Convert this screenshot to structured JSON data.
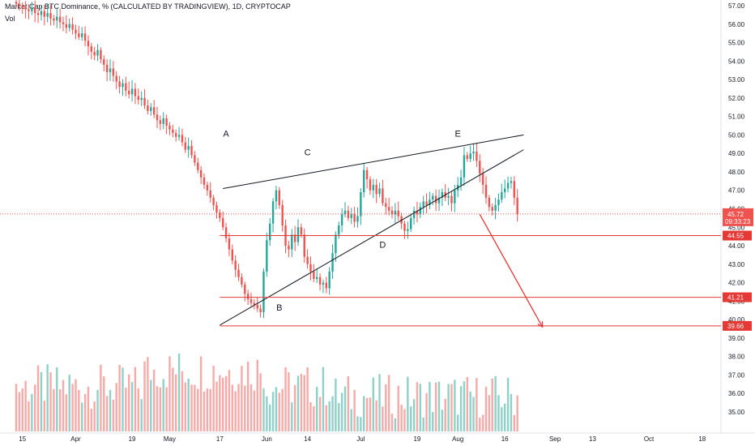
{
  "header": {
    "title": "Market Cap BTC Dominance, % (CALCULATED BY TRADINGVIEW), 1D, CRYPTOCAP",
    "volume_label": "Vol"
  },
  "colors": {
    "up": "#26a69a",
    "down": "#ef5350",
    "vol_up": "#8fd1c9",
    "vol_down": "#f7a9a7",
    "line": "#131722",
    "level": "#e53935",
    "grid": "#f0f3fa"
  },
  "chart_data": {
    "type": "candlestick",
    "y_axis": {
      "ticks": [
        "57.00",
        "56.00",
        "55.00",
        "54.00",
        "53.00",
        "52.00",
        "51.00",
        "50.00",
        "49.00",
        "48.00",
        "47.00",
        "46.00",
        "45.00",
        "44.00",
        "43.00",
        "42.00",
        "41.00",
        "40.00",
        "39.00",
        "38.00",
        "37.00",
        "36.00",
        "35.00"
      ]
    },
    "x_axis": {
      "ticks": [
        {
          "label": "15",
          "day": 14
        },
        {
          "label": "Apr",
          "day": 31
        },
        {
          "label": "19",
          "day": 49
        },
        {
          "label": "May",
          "day": 61
        },
        {
          "label": "17",
          "day": 77
        },
        {
          "label": "Jun",
          "day": 92
        },
        {
          "label": "14",
          "day": 105
        },
        {
          "label": "Jul",
          "day": 122
        },
        {
          "label": "19",
          "day": 140
        },
        {
          "label": "Aug",
          "day": 153
        },
        {
          "label": "16",
          "day": 168
        },
        {
          "label": "Sep",
          "day": 184
        },
        {
          "label": "13",
          "day": 196
        },
        {
          "label": "Oct",
          "day": 214
        },
        {
          "label": "18",
          "day": 231
        }
      ]
    },
    "close_series": [
      57.1,
      57.0,
      56.9,
      56.8,
      56.7,
      56.9,
      56.6,
      56.5,
      56.7,
      56.4,
      56.6,
      56.3,
      56.2,
      56.4,
      56.1,
      56.0,
      55.8,
      56.0,
      55.7,
      55.5,
      55.3,
      55.5,
      55.1,
      54.8,
      54.5,
      54.3,
      54.6,
      54.1,
      53.8,
      53.4,
      53.6,
      53.2,
      52.9,
      52.6,
      52.8,
      52.4,
      52.2,
      52.5,
      52.1,
      51.9,
      52.0,
      51.6,
      51.3,
      51.5,
      51.1,
      50.8,
      50.6,
      50.9,
      50.5,
      50.3,
      50.1,
      49.9,
      50.0,
      49.6,
      49.2,
      49.4,
      48.9,
      48.5,
      48.1,
      47.7,
      47.3,
      47.0,
      46.6,
      46.2,
      45.8,
      45.5,
      45.0,
      44.4,
      43.8,
      43.2,
      42.7,
      42.3,
      41.9,
      41.4,
      41.1,
      40.9,
      40.8,
      40.6,
      40.4,
      42.6,
      44.3,
      45.2,
      46.4,
      47.0,
      46.2,
      45.1,
      44.0,
      43.8,
      44.6,
      44.2,
      45.0,
      44.6,
      43.4,
      43.0,
      42.6,
      42.2,
      42.3,
      41.9,
      42.0,
      41.7,
      42.6,
      43.6,
      44.6,
      45.1,
      45.7,
      45.9,
      45.5,
      45.7,
      45.3,
      45.6,
      46.9,
      48.1,
      47.6,
      47.0,
      47.3,
      46.8,
      47.1,
      46.3,
      46.1,
      45.9,
      45.7,
      45.9,
      45.6,
      45.2,
      44.8,
      44.9,
      45.5,
      45.9,
      45.7,
      46.1,
      46.4,
      46.2,
      46.5,
      46.7,
      46.3,
      46.6,
      46.9,
      46.6,
      46.7,
      46.3,
      47.0,
      47.3,
      47.7,
      48.9,
      48.7,
      49.0,
      49.1,
      48.6,
      47.9,
      47.3,
      46.6,
      46.1,
      45.9,
      46.2,
      46.5,
      46.9,
      47.1,
      47.4,
      47.5,
      46.6,
      45.72
    ],
    "last_value": "45.72",
    "countdown": "09:33:23",
    "wave_labels": [
      "A",
      "B",
      "C",
      "D",
      "E"
    ],
    "horizontal_levels": [
      {
        "value": 44.55,
        "label": "44.55"
      },
      {
        "value": 41.21,
        "label": "41.21"
      },
      {
        "value": 39.66,
        "label": "39.66"
      }
    ],
    "wedge_lines": [
      {
        "from_day": 78,
        "from_value": 47.1,
        "to_day": 174,
        "to_value": 50.0
      },
      {
        "from_day": 77,
        "from_value": 39.7,
        "to_day": 174,
        "to_value": 49.2
      }
    ],
    "projection": {
      "from_day": 160,
      "from_value": 45.7,
      "to_day": 180,
      "to_value": 39.6
    }
  }
}
